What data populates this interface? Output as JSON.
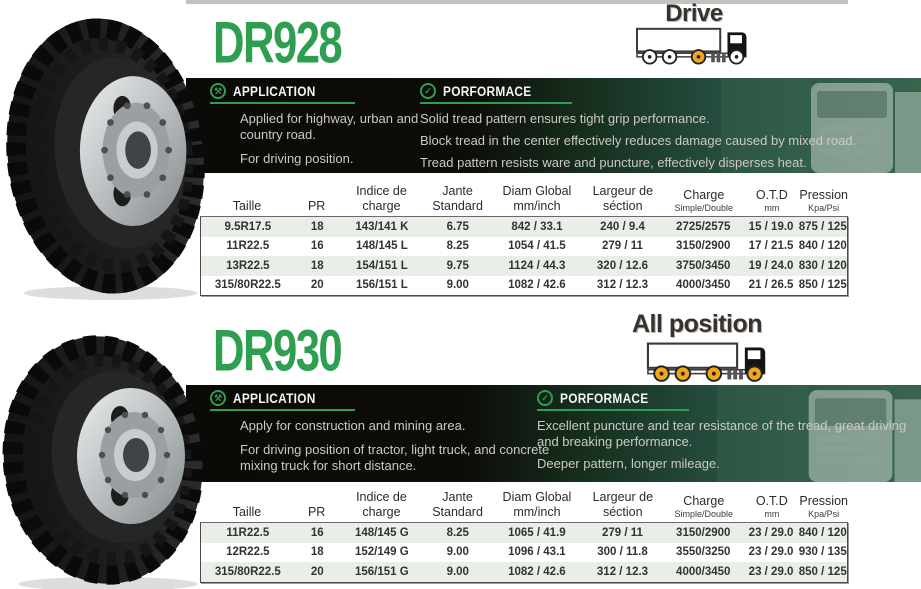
{
  "colors": {
    "brand_green": "#2e9e50",
    "highlight_wheel_orange": "#f2a71b",
    "panel_black": "#0b0a07",
    "panel_green": "#39654f",
    "row_stripe": "#e9efe7",
    "top_divider_gray": "#c2c2c2"
  },
  "sections": [
    {
      "model": "DR928",
      "position_label": "Drive",
      "truck": {
        "wheel_colors": [
          "#ffffff",
          "#ffffff",
          "#f2a71b",
          "#ffffff"
        ]
      },
      "application": {
        "heading": "APPLICATION",
        "icon": "tools-icon",
        "lines": [
          "Applied for highway, urban and country road.",
          "For driving position."
        ]
      },
      "performance": {
        "heading": "PORFORMACE",
        "icon": "check-icon",
        "lines": [
          "Solid tread pattern ensures tight grip performance.",
          "Block tread in the center effectively reduces damage caused by mixed road.",
          "Tread pattern resists ware and puncture, effectively disperses heat."
        ]
      },
      "table": {
        "headers": [
          {
            "main": "Taille",
            "sub": ""
          },
          {
            "main": "PR",
            "sub": ""
          },
          {
            "main": "Indice de",
            "sub": "charge"
          },
          {
            "main": "Jante",
            "sub": "Standard"
          },
          {
            "main": "Diam Global",
            "sub": "mm/inch"
          },
          {
            "main": "Largeur de",
            "sub": "séction"
          },
          {
            "main": "Charge",
            "sub": "Simple/Double"
          },
          {
            "main": "O.T.D",
            "sub": "mm"
          },
          {
            "main": "Pression",
            "sub": "Kpa/Psi"
          }
        ],
        "rows": [
          [
            "9.5R17.5",
            "18",
            "143/141 K",
            "6.75",
            "842 / 33.1",
            "240 / 9.4",
            "2725/2575",
            "15 / 19.0",
            "875 / 125"
          ],
          [
            "11R22.5",
            "16",
            "148/145 L",
            "8.25",
            "1054 / 41.5",
            "279 / 11",
            "3150/2900",
            "17 / 21.5",
            "840 / 120"
          ],
          [
            "13R22.5",
            "18",
            "154/151 L",
            "9.75",
            "1124 / 44.3",
            "320 / 12.6",
            "3750/3450",
            "19 / 24.0",
            "830 / 120"
          ],
          [
            "315/80R22.5",
            "20",
            "156/151 L",
            "9.00",
            "1082 / 42.6",
            "312 / 12.3",
            "4000/3450",
            "21 / 26.5",
            "850 / 125"
          ]
        ]
      }
    },
    {
      "model": "DR930",
      "position_label": "All position",
      "truck": {
        "wheel_colors": [
          "#f2a71b",
          "#f2a71b",
          "#f2a71b",
          "#f2a71b"
        ]
      },
      "application": {
        "heading": "APPLICATION",
        "icon": "tools-icon",
        "lines": [
          "Apply for construction and mining area.",
          "For driving position of tractor, light truck, and concrete mixing truck for short distance."
        ]
      },
      "performance": {
        "heading": "PORFORMACE",
        "icon": "check-icon",
        "lines": [
          "Excellent puncture and tear resistance of the tread, great driving and breaking performance.",
          "Deeper pattern, longer mileage."
        ]
      },
      "table": {
        "headers": [
          {
            "main": "Taille",
            "sub": ""
          },
          {
            "main": "PR",
            "sub": ""
          },
          {
            "main": "Indice de",
            "sub": "charge"
          },
          {
            "main": "Jante",
            "sub": "Standard"
          },
          {
            "main": "Diam Global",
            "sub": "mm/inch"
          },
          {
            "main": "Largeur de",
            "sub": "séction"
          },
          {
            "main": "Charge",
            "sub": "Simple/Double"
          },
          {
            "main": "O.T.D",
            "sub": "mm"
          },
          {
            "main": "Pression",
            "sub": "Kpa/Psi"
          }
        ],
        "rows": [
          [
            "11R22.5",
            "16",
            "148/145 G",
            "8.25",
            "1065 / 41.9",
            "279 / 11",
            "3150/2900",
            "23 / 29.0",
            "840 / 120"
          ],
          [
            "12R22.5",
            "18",
            "152/149 G",
            "9.00",
            "1096 / 43.1",
            "300 / 11.8",
            "3550/3250",
            "23 / 29.0",
            "930 / 135"
          ],
          [
            "315/80R22.5",
            "20",
            "156/151 G",
            "9.00",
            "1082 / 42.6",
            "312 / 12.3",
            "4000/3450",
            "23 / 29.0",
            "850 / 125"
          ]
        ]
      }
    }
  ],
  "icons": {
    "application_glyph": "⚒",
    "performance_glyph": "✓"
  }
}
